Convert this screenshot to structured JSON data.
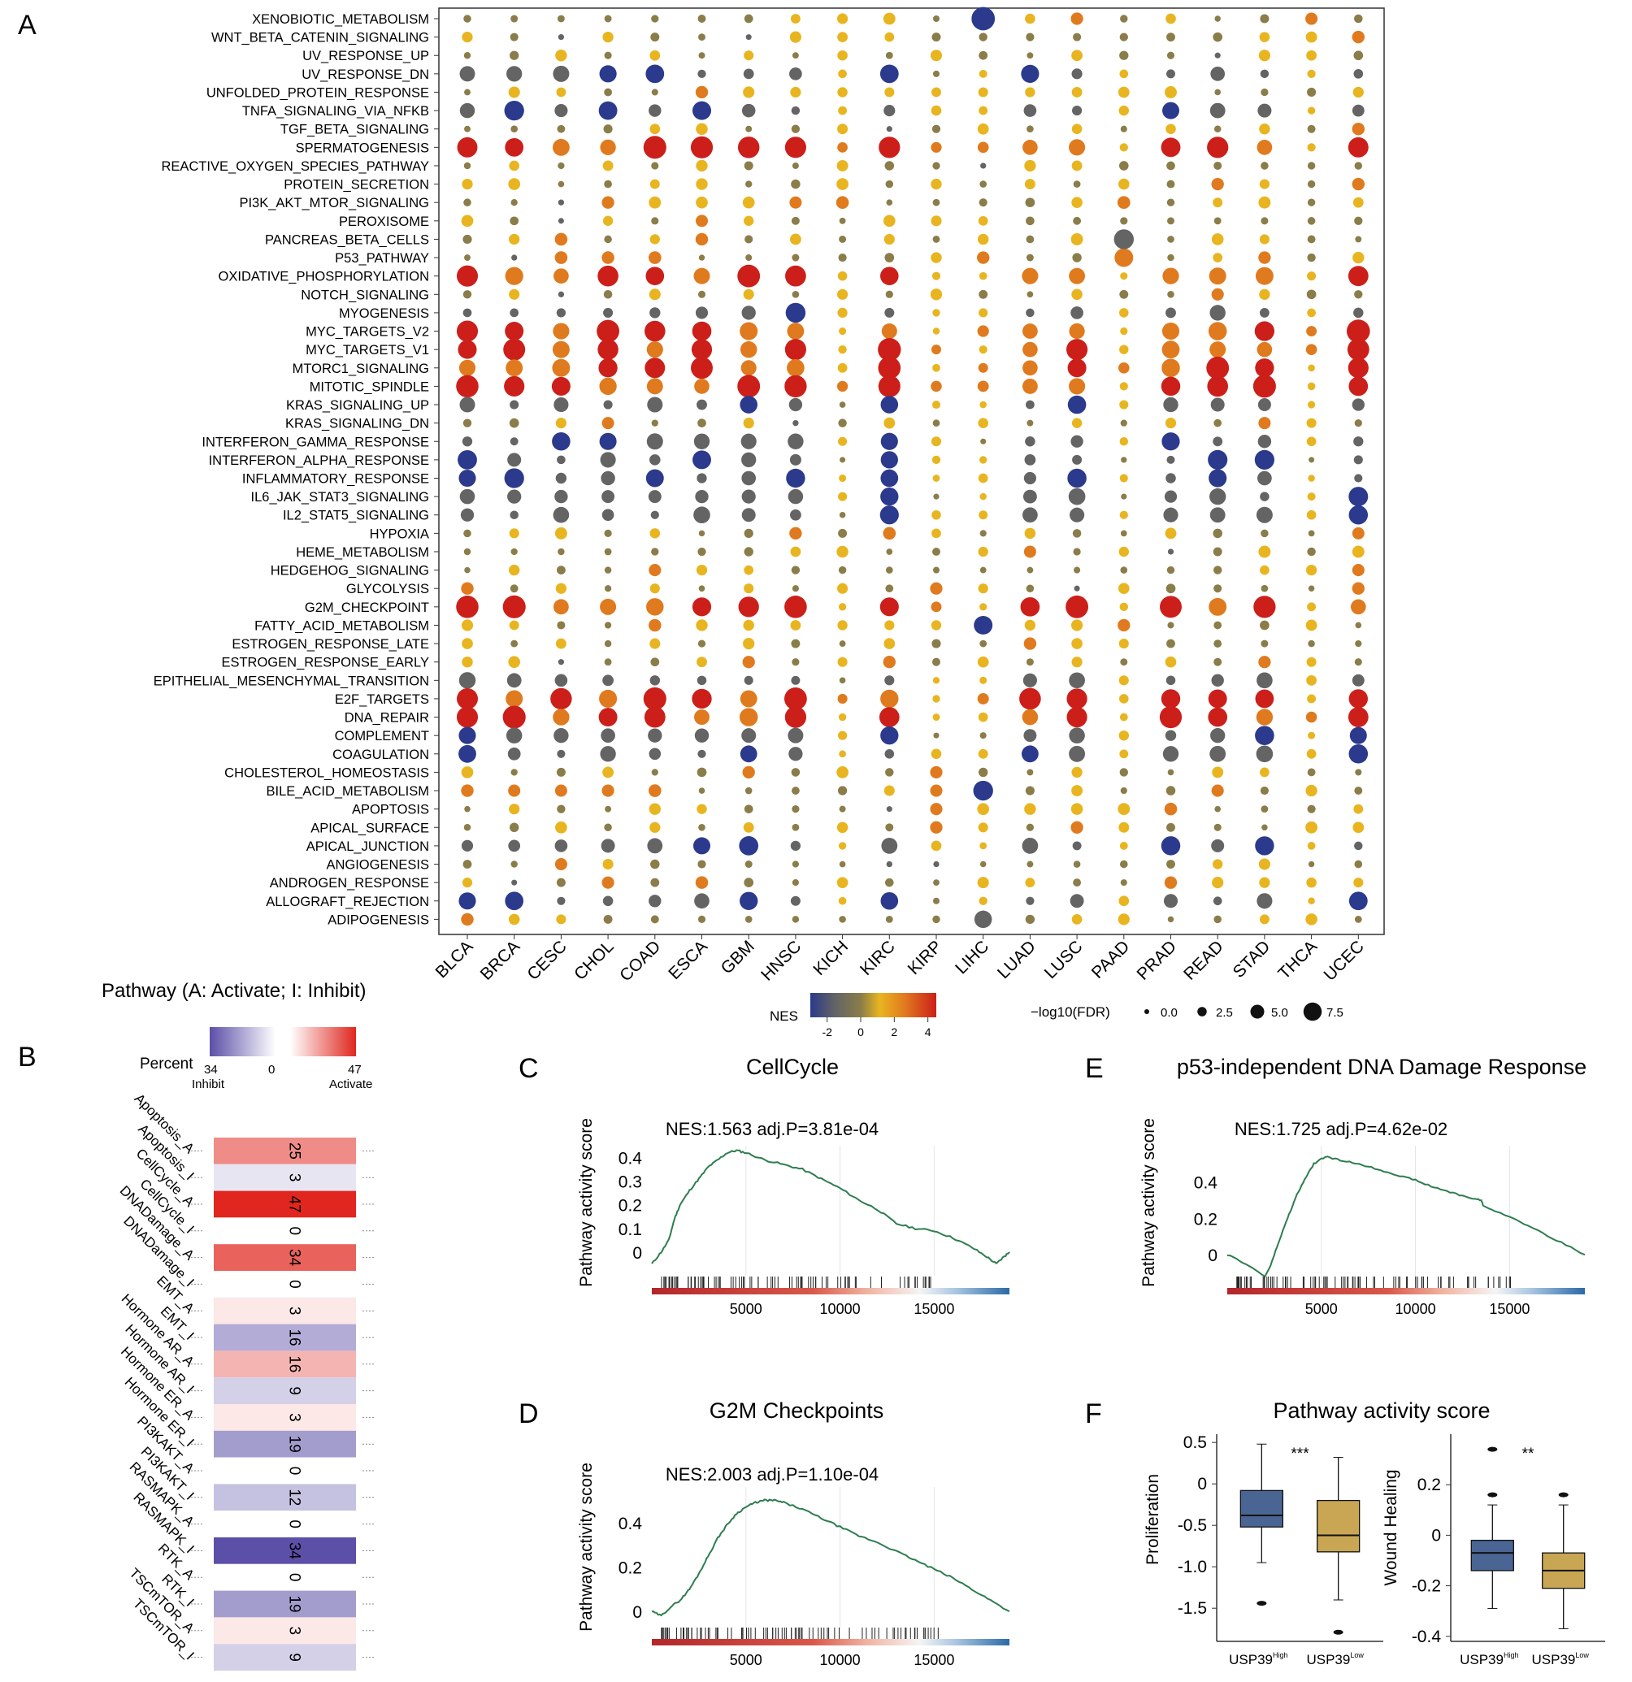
{
  "colors": {
    "blue": "#2b3a8c",
    "grey": "#646464",
    "olive": "#8a7d4a",
    "yellow": "#e8b520",
    "orange": "#e07a1e",
    "red": "#cc1f1a",
    "curve": "#2e7d4f",
    "boxHigh": "#4a6494",
    "boxLow": "#c8a653"
  },
  "panels": {
    "a": "A",
    "b": "B",
    "c": "C",
    "d": "D",
    "e": "E",
    "f": "F"
  },
  "chart_data": [
    {
      "id": "A",
      "type": "scatter",
      "title": "Pathway (A: Activate; I: Inhibit)",
      "pathways": [
        "XENOBIOTIC_METABOLISM",
        "WNT_BETA_CATENIN_SIGNALING",
        "UV_RESPONSE_UP",
        "UV_RESPONSE_DN",
        "UNFOLDED_PROTEIN_RESPONSE",
        "TNFA_SIGNALING_VIA_NFKB",
        "TGF_BETA_SIGNALING",
        "SPERMATOGENESIS",
        "REACTIVE_OXYGEN_SPECIES_PATHWAY",
        "PROTEIN_SECRETION",
        "PI3K_AKT_MTOR_SIGNALING",
        "PEROXISOME",
        "PANCREAS_BETA_CELLS",
        "P53_PATHWAY",
        "OXIDATIVE_PHOSPHORYLATION",
        "NOTCH_SIGNALING",
        "MYOGENESIS",
        "MYC_TARGETS_V2",
        "MYC_TARGETS_V1",
        "MTORC1_SIGNALING",
        "MITOTIC_SPINDLE",
        "KRAS_SIGNALING_UP",
        "KRAS_SIGNALING_DN",
        "INTERFERON_GAMMA_RESPONSE",
        "INTERFERON_ALPHA_RESPONSE",
        "INFLAMMATORY_RESPONSE",
        "IL6_JAK_STAT3_SIGNALING",
        "IL2_STAT5_SIGNALING",
        "HYPOXIA",
        "HEME_METABOLISM",
        "HEDGEHOG_SIGNALING",
        "GLYCOLYSIS",
        "G2M_CHECKPOINT",
        "FATTY_ACID_METABOLISM",
        "ESTROGEN_RESPONSE_LATE",
        "ESTROGEN_RESPONSE_EARLY",
        "EPITHELIAL_MESENCHYMAL_TRANSITION",
        "E2F_TARGETS",
        "DNA_REPAIR",
        "COMPLEMENT",
        "COAGULATION",
        "CHOLESTEROL_HOMEOSTASIS",
        "BILE_ACID_METABOLISM",
        "APOPTOSIS",
        "APICAL_SURFACE",
        "APICAL_JUNCTION",
        "ANGIOGENESIS",
        "ANDROGEN_RESPONSE",
        "ALLOGRAFT_REJECTION",
        "ADIPOGENESIS"
      ],
      "cancers": [
        "BLCA",
        "BRCA",
        "CESC",
        "CHOL",
        "COAD",
        "ESCA",
        "GBM",
        "HNSC",
        "KICH",
        "KIRC",
        "KIRP",
        "LIHC",
        "LUAD",
        "LUSC",
        "PAAD",
        "PRAD",
        "READ",
        "STAD",
        "THCA",
        "UCEC"
      ],
      "nes_legend": {
        "label": "NES",
        "ticks": [
          "-2",
          "0",
          "2",
          "4"
        ],
        "range": [
          -3,
          4.5
        ]
      },
      "size_legend": {
        "label": "−log10(FDR)",
        "ticks": [
          "0.0",
          "2.5",
          "5.0",
          "7.5"
        ],
        "values": [
          0,
          2.5,
          5,
          7.5
        ]
      }
    },
    {
      "id": "B",
      "type": "heatmap",
      "legend": {
        "title": "Percent",
        "min": "34",
        "mid": "0",
        "max": "47",
        "min_label": "Inhibit",
        "max_label": "Activate"
      },
      "rows": [
        "Apoptosis_A",
        "Apoptosis_I",
        "CellCycle_A",
        "CellCycle_I",
        "DNADamage_A",
        "DNADamage_I",
        "EMT_A",
        "EMT_I",
        "Hormone AR_A",
        "Hormone AR_I",
        "Hormone ER_A",
        "Hormone ER_I",
        "PI3KAKT_A",
        "PI3KAKT_I",
        "RASMAPK_A",
        "RASMAPK_I",
        "RTK_A",
        "RTK_I",
        "TSCmTOR_A",
        "TSCmTOR_I"
      ],
      "values": [
        "25",
        "3",
        "47",
        "0",
        "34",
        "0",
        "3",
        "16",
        "16",
        "9",
        "3",
        "19",
        "0",
        "12",
        "0",
        "34",
        "0",
        "19",
        "3",
        "9"
      ],
      "signed": [
        25,
        -3,
        47,
        0,
        34,
        0,
        3,
        -16,
        16,
        -9,
        3,
        -19,
        0,
        -12,
        0,
        -34,
        0,
        -19,
        3,
        -9
      ]
    },
    {
      "id": "C",
      "type": "line",
      "title": "CellCycle",
      "stat": "NES:1.563 adj.P=3.81e-04",
      "ylabel": "Pathway activity score",
      "ylim": [
        -0.1,
        0.45
      ],
      "yticks": [
        "0.4",
        "0.3",
        "0.2",
        "0.1",
        "0"
      ],
      "ytick_values": [
        0.4,
        0.3,
        0.2,
        0.1,
        0
      ],
      "xlim": [
        0,
        19000
      ],
      "xticks": [
        "5000",
        "10000",
        "15000"
      ],
      "xtick_values": [
        5000,
        10000,
        15000
      ],
      "x": [
        0,
        500,
        900,
        1200,
        1500,
        2000,
        2500,
        3000,
        3500,
        4000,
        4500,
        5000,
        6000,
        7000,
        8000,
        9000,
        10000,
        11000,
        12000,
        13000,
        14000,
        15000,
        16000,
        17000,
        17800,
        18300,
        18700,
        19000
      ],
      "y": [
        -0.05,
        0.0,
        0.05,
        0.14,
        0.2,
        0.26,
        0.31,
        0.36,
        0.39,
        0.42,
        0.43,
        0.42,
        0.39,
        0.37,
        0.35,
        0.31,
        0.27,
        0.22,
        0.18,
        0.12,
        0.1,
        0.09,
        0.06,
        0.02,
        -0.02,
        -0.05,
        -0.02,
        0.0
      ]
    },
    {
      "id": "D",
      "type": "line",
      "title": "G2M Checkpoints",
      "stat": "NES:2.003 adj.P=1.10e-04",
      "ylabel": "Pathway activity score",
      "ylim": [
        -0.08,
        0.56
      ],
      "yticks": [
        "0.4",
        "0.2",
        "0"
      ],
      "ytick_values": [
        0.4,
        0.2,
        0
      ],
      "xlim": [
        0,
        19000
      ],
      "xticks": [
        "5000",
        "10000",
        "15000"
      ],
      "xtick_values": [
        5000,
        10000,
        15000
      ],
      "x": [
        0,
        500,
        1000,
        1500,
        2000,
        2500,
        3000,
        3500,
        4000,
        4500,
        5000,
        5500,
        6000,
        6500,
        7000,
        8000,
        9000,
        10000,
        11000,
        12000,
        13000,
        14000,
        15000,
        16000,
        17000,
        18000,
        19000
      ],
      "y": [
        0.0,
        -0.02,
        0.02,
        0.05,
        0.1,
        0.17,
        0.25,
        0.33,
        0.39,
        0.44,
        0.47,
        0.49,
        0.5,
        0.5,
        0.49,
        0.46,
        0.42,
        0.38,
        0.34,
        0.31,
        0.27,
        0.23,
        0.19,
        0.15,
        0.1,
        0.05,
        0.0
      ]
    },
    {
      "id": "E",
      "type": "line",
      "title": "p53-independent DNA Damage Response",
      "stat": "NES:1.725 adj.P=4.62e-02",
      "ylabel": "Pathway activity score",
      "ylim": [
        -0.16,
        0.6
      ],
      "yticks": [
        "0.4",
        "0.2",
        "0"
      ],
      "ytick_values": [
        0.4,
        0.2,
        0
      ],
      "xlim": [
        0,
        19000
      ],
      "xticks": [
        "5000",
        "10000",
        "15000"
      ],
      "xtick_values": [
        5000,
        10000,
        15000
      ],
      "x": [
        0,
        1000,
        2000,
        2300,
        2700,
        3200,
        3700,
        4200,
        4600,
        5200,
        6000,
        7000,
        8000,
        9000,
        10000,
        11000,
        12000,
        13000,
        13500,
        13600,
        14500,
        16000,
        17500,
        19000
      ],
      "y": [
        0.0,
        -0.05,
        -0.12,
        -0.06,
        0.06,
        0.2,
        0.33,
        0.43,
        0.5,
        0.54,
        0.52,
        0.5,
        0.47,
        0.44,
        0.41,
        0.37,
        0.34,
        0.31,
        0.3,
        0.27,
        0.23,
        0.16,
        0.08,
        0.0
      ]
    },
    {
      "id": "F",
      "type": "box",
      "title": "Pathway activity score",
      "groups": [
        "USP39",
        "USP39"
      ],
      "group_sup": [
        "High",
        "Low"
      ],
      "plots": [
        {
          "ylabel": "Proliferation",
          "ylim": [
            -1.9,
            0.6
          ],
          "yticks": [
            "0.5",
            "0",
            "-0.5",
            "-1.0",
            "-1.5"
          ],
          "ytick_values": [
            0.5,
            0,
            -0.5,
            -1.0,
            -1.5
          ],
          "significance": "***",
          "boxes": [
            {
              "q1": -0.52,
              "median": -0.38,
              "q3": -0.08,
              "whisker_low": -0.95,
              "whisker_high": 0.48,
              "outliers": [
                -1.44
              ]
            },
            {
              "q1": -0.82,
              "median": -0.62,
              "q3": -0.2,
              "whisker_low": -1.4,
              "whisker_high": 0.32,
              "outliers": [
                -1.79
              ]
            }
          ]
        },
        {
          "ylabel": "Wound Healing",
          "ylim": [
            -0.42,
            0.4
          ],
          "yticks": [
            "0.2",
            "0",
            "-0.2",
            "-0.4"
          ],
          "ytick_values": [
            0.2,
            0,
            -0.2,
            -0.4
          ],
          "significance": "**",
          "boxes": [
            {
              "q1": -0.14,
              "median": -0.07,
              "q3": -0.02,
              "whisker_low": -0.29,
              "whisker_high": 0.12,
              "outliers": [
                0.16,
                0.34
              ]
            },
            {
              "q1": -0.21,
              "median": -0.14,
              "q3": -0.07,
              "whisker_low": -0.37,
              "whisker_high": 0.12,
              "outliers": [
                0.16
              ]
            }
          ]
        }
      ]
    }
  ]
}
